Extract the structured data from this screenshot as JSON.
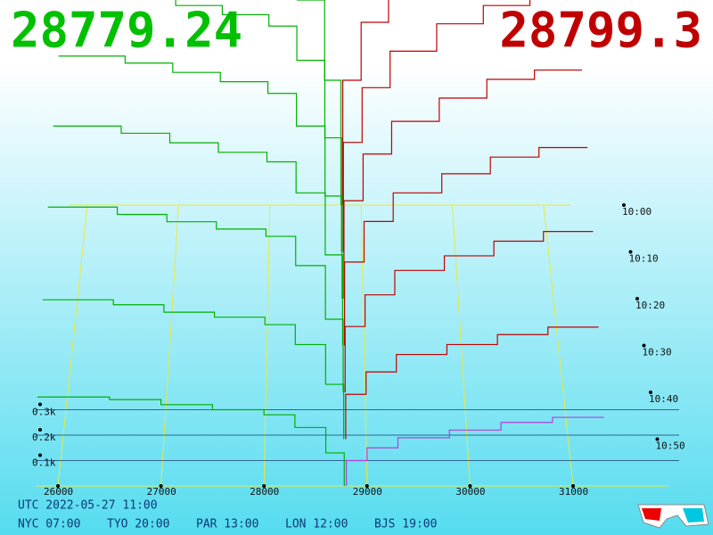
{
  "chart_data": {
    "type": "depth3d",
    "bid_price": "28779.24",
    "ask_price": "28799.3",
    "bid_color": "#00b000",
    "ask_color": "#c00000",
    "bid_prices": [
      25800,
      26500,
      27000,
      27500,
      28000,
      28300,
      28600,
      28779
    ],
    "ask_prices": [
      28799,
      29000,
      29300,
      29800,
      30300,
      30800,
      31300
    ],
    "snapshots": [
      {
        "bid_volumes": [
          1250,
          1220,
          1180,
          1140,
          1080,
          920,
          560,
          0
        ],
        "ask_volumes": [
          0,
          560,
          820,
          1000,
          1120,
          1200,
          1240
        ]
      },
      {
        "bid_volumes": [
          1150,
          1120,
          1080,
          1040,
          990,
          840,
          500,
          0
        ],
        "ask_volumes": [
          0,
          480,
          720,
          880,
          1000,
          1080,
          1120
        ]
      },
      {
        "bid_volumes": [
          1040,
          1010,
          970,
          930,
          880,
          740,
          440,
          0
        ],
        "ask_volumes": [
          0,
          420,
          620,
          760,
          860,
          940,
          980
        ]
      },
      {
        "bid_volumes": [
          920,
          890,
          850,
          810,
          770,
          640,
          380,
          0
        ],
        "ask_volumes": [
          0,
          350,
          520,
          640,
          720,
          790,
          830
        ]
      },
      {
        "bid_volumes": [
          760,
          730,
          700,
          670,
          640,
          520,
          300,
          0
        ],
        "ask_volumes": [
          0,
          270,
          400,
          500,
          560,
          620,
          660
        ]
      },
      {
        "bid_volumes": [
          560,
          540,
          510,
          490,
          460,
          380,
          220,
          0
        ],
        "ask_volumes": [
          0,
          180,
          270,
          340,
          380,
          420,
          450
        ]
      },
      {
        "bid_volumes": [
          350,
          340,
          320,
          300,
          280,
          230,
          130,
          0
        ],
        "ask_volumes": [
          0,
          100,
          150,
          190,
          220,
          250,
          270
        ]
      }
    ],
    "xticks": [
      26000,
      27000,
      28000,
      29000,
      30000,
      31000
    ],
    "vticks": [
      {
        "value": 100,
        "label": "0.1k"
      },
      {
        "value": 200,
        "label": "0.2k"
      },
      {
        "value": 300,
        "label": "0.3k"
      }
    ],
    "time_ticks": [
      "10:00",
      "10:10",
      "10:20",
      "10:30",
      "10:40",
      "10:50"
    ],
    "utc": "UTC 2022-05-27 11:00",
    "clocks": [
      "NYC 07:00",
      "TYO 20:00",
      "PAR 13:00",
      "LON 12:00",
      "BJS 19:00"
    ]
  }
}
